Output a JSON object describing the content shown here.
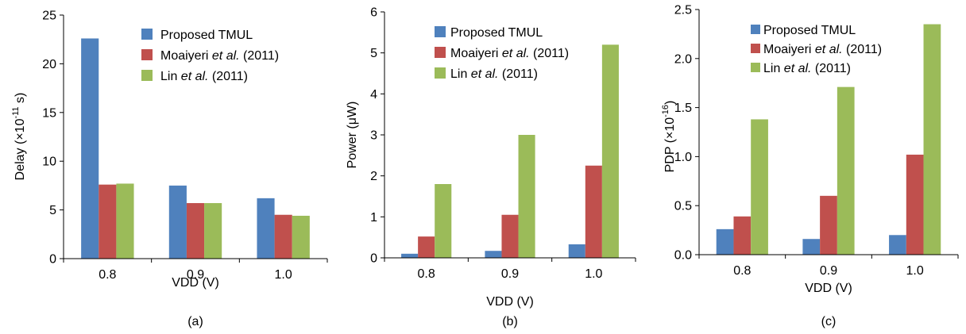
{
  "chart_data": [
    {
      "type": "bar",
      "caption": "(a)",
      "xlabel": "VDD (V)",
      "ylabel": {
        "base": "Delay (×10",
        "sup": "-11",
        "tail": " s)"
      },
      "categories": [
        "0.8",
        "0.9",
        "1.0"
      ],
      "ylim": [
        0,
        25
      ],
      "yticks": [
        "0",
        "5",
        "10",
        "15",
        "20",
        "25"
      ],
      "yticks_values": [
        0,
        5,
        10,
        15,
        20,
        25
      ],
      "legend_position": "top-right",
      "series": [
        {
          "name": [
            {
              "t": "Proposed TMUL"
            }
          ],
          "color": "#4F81BD",
          "values": [
            22.6,
            7.5,
            6.2
          ]
        },
        {
          "name": [
            {
              "t": "Moaiyeri "
            },
            {
              "t": "et al.",
              "i": true
            },
            {
              "t": " (2011)"
            }
          ],
          "color": "#C0504D",
          "values": [
            7.6,
            5.7,
            4.5
          ]
        },
        {
          "name": [
            {
              "t": "Lin "
            },
            {
              "t": "et al.",
              "i": true
            },
            {
              "t": " (2011)"
            }
          ],
          "color": "#9BBB59",
          "values": [
            7.7,
            5.7,
            4.4
          ]
        }
      ]
    },
    {
      "type": "bar",
      "caption": "(b)",
      "xlabel": "VDD (V)",
      "ylabel": {
        "base": "Power (μW)",
        "sup": "",
        "tail": ""
      },
      "categories": [
        "0.8",
        "0.9",
        "1.0"
      ],
      "ylim": [
        0,
        6
      ],
      "yticks": [
        "0",
        "1",
        "2",
        "3",
        "4",
        "5",
        "6"
      ],
      "yticks_values": [
        0,
        1,
        2,
        3,
        4,
        5,
        6
      ],
      "legend_position": "top-left",
      "series": [
        {
          "name": [
            {
              "t": "Proposed TMUL"
            }
          ],
          "color": "#4F81BD",
          "values": [
            0.1,
            0.17,
            0.33
          ]
        },
        {
          "name": [
            {
              "t": "Moaiyeri "
            },
            {
              "t": "et al.",
              "i": true
            },
            {
              "t": " (2011)"
            }
          ],
          "color": "#C0504D",
          "values": [
            0.52,
            1.05,
            2.25
          ]
        },
        {
          "name": [
            {
              "t": "Lin "
            },
            {
              "t": "et al.",
              "i": true
            },
            {
              "t": " (2011)"
            }
          ],
          "color": "#9BBB59",
          "values": [
            1.8,
            3.0,
            5.2
          ]
        }
      ]
    },
    {
      "type": "bar",
      "caption": "(c)",
      "xlabel": "VDD (V)",
      "ylabel": {
        "base": "PDP (×10",
        "sup": "-16",
        "tail": ")"
      },
      "categories": [
        "0.8",
        "0.9",
        "1.0"
      ],
      "ylim": [
        0,
        2.5
      ],
      "yticks": [
        "0.0",
        "0.5",
        "1.0",
        "1.5",
        "2.0",
        "2.5"
      ],
      "yticks_values": [
        0,
        0.5,
        1.0,
        1.5,
        2.0,
        2.5
      ],
      "legend_position": "top-left",
      "series": [
        {
          "name": [
            {
              "t": "Proposed TMUL"
            }
          ],
          "color": "#4F81BD",
          "values": [
            0.26,
            0.16,
            0.2
          ]
        },
        {
          "name": [
            {
              "t": "Moaiyeri "
            },
            {
              "t": "et al.",
              "i": true
            },
            {
              "t": " (2011)"
            }
          ],
          "color": "#C0504D",
          "values": [
            0.39,
            0.6,
            1.02
          ]
        },
        {
          "name": [
            {
              "t": "Lin "
            },
            {
              "t": "et al.",
              "i": true
            },
            {
              "t": " (2011)"
            }
          ],
          "color": "#9BBB59",
          "values": [
            1.38,
            1.71,
            2.35
          ]
        }
      ]
    }
  ]
}
